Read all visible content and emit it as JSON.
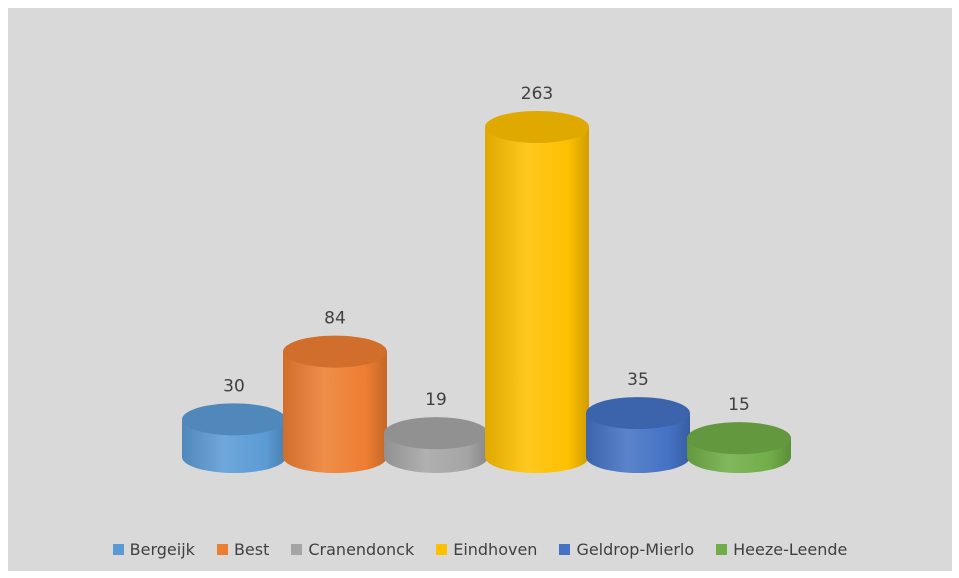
{
  "chart_data": {
    "type": "bar",
    "style": "3d-cylinder",
    "categories": [
      "Bergeijk",
      "Best",
      "Cranendonck",
      "Eindhoven",
      "Geldrop-Mierlo",
      "Heeze-Leende"
    ],
    "values": [
      30,
      84,
      19,
      263,
      35,
      15
    ],
    "colors": [
      "#5b9bd5",
      "#ed7d31",
      "#a5a5a5",
      "#ffc000",
      "#4472c4",
      "#70ad47"
    ],
    "title": "",
    "xlabel": "",
    "ylabel": "",
    "ylim": [
      0,
      263
    ],
    "grid": false,
    "legend_position": "bottom",
    "data_labels": true,
    "background": "#d9d9d9"
  }
}
